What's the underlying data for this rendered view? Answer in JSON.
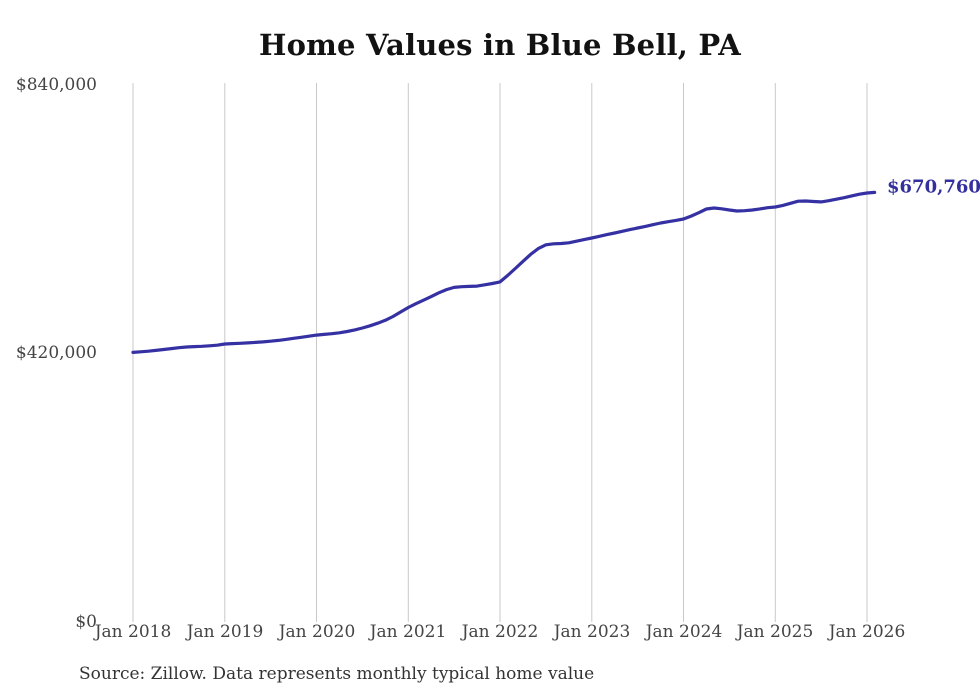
{
  "chart_data": {
    "type": "line",
    "title": "Home Values in Blue Bell, PA",
    "source_note": "Source: Zillow. Data represents monthly typical home value",
    "end_label": "$670,760",
    "latest_value": 670760,
    "interval": "monthly",
    "start_month": "Jan 2018",
    "x_tick_labels": [
      "Jan 2018",
      "Jan 2019",
      "Jan 2020",
      "Jan 2021",
      "Jan 2022",
      "Jan 2023",
      "Jan 2024",
      "Jan 2025",
      "Jan 2026"
    ],
    "y_tick_labels": [
      "$840,000",
      "$420,000",
      "$0"
    ],
    "y_tick_values": [
      840000,
      420000,
      0
    ],
    "ylim": [
      0,
      840000
    ],
    "grid": "vertical-only",
    "legend": "none",
    "series_name": "Typical home value",
    "values": [
      421000,
      421800,
      422800,
      424000,
      425400,
      426900,
      428300,
      429300,
      430000,
      430400,
      431200,
      432200,
      434000,
      434600,
      435100,
      435700,
      436500,
      437400,
      438400,
      439700,
      441200,
      442900,
      444500,
      446200,
      448000,
      449000,
      450100,
      451500,
      453500,
      456000,
      459000,
      462500,
      466500,
      471000,
      477000,
      484000,
      491000,
      497000,
      502500,
      508000,
      514000,
      519000,
      522500,
      523500,
      524000,
      524500,
      526500,
      528500,
      531000,
      541000,
      552000,
      563000,
      574000,
      583000,
      589000,
      590500,
      591000,
      592000,
      594500,
      597000,
      599500,
      602200,
      604900,
      607300,
      610000,
      612600,
      615100,
      617700,
      620300,
      622900,
      625000,
      627100,
      629200,
      633800,
      639000,
      644800,
      646400,
      645200,
      643200,
      641700,
      642200,
      643200,
      645000,
      646800,
      647900,
      650500,
      653800,
      657000,
      657400,
      656600,
      655900,
      657800,
      660200,
      662500,
      665300,
      668000,
      669800,
      670760
    ],
    "colors": {
      "line": "#3531a3",
      "end_label": "#33309e",
      "grid": "#c9c9c9",
      "title": "#121212",
      "axis_text": "#444444",
      "source_text": "#333333",
      "background": "#ffffff"
    }
  }
}
